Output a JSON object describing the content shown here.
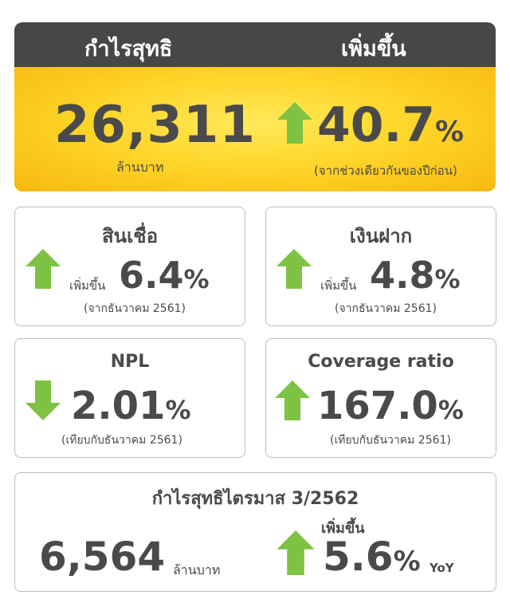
{
  "top": {
    "profit_label": "กำไรสุทธิ",
    "increase_label": "เพิ่มขึ้น",
    "profit_value": "26,311",
    "profit_unit": "ล้านบาท",
    "increase_value": "40.7",
    "increase_pct": "%",
    "increase_note": "(จากช่วงเดียวกันของปีก่อน)"
  },
  "loans": {
    "title": "สินเชื่อ",
    "direction_label": "เพิ่มขึ้น",
    "value": "6.4",
    "pct": "%",
    "note": "(จากธันวาคม 2561)"
  },
  "deposits": {
    "title": "เงินฝาก",
    "direction_label": "เพิ่มขึ้น",
    "value": "4.8",
    "pct": "%",
    "note": "(จากธันวาคม 2561)"
  },
  "npl": {
    "title": "NPL",
    "value": "2.01",
    "pct": "%",
    "note": "(เทียบกับธันวาคม 2561)"
  },
  "coverage": {
    "title": "Coverage ratio",
    "value": "167.0",
    "pct": "%",
    "note": "(เทียบกับธันวาคม 2561)"
  },
  "q3": {
    "title": "กำไรสุทธิไตรมาส 3/2562",
    "profit_value": "6,564",
    "profit_unit": "ล้านบาท",
    "direction_label": "เพิ่มขึ้น",
    "change_value": "5.6",
    "pct": "%",
    "yoy": "YoY"
  },
  "colors": {
    "arrow_green": "#7dc242",
    "header_gray": "#474648",
    "banner_yellow": "#ffd62a",
    "text_gray": "#4a4a4a"
  },
  "icons": [
    "arrow-up-icon",
    "arrow-down-icon"
  ]
}
